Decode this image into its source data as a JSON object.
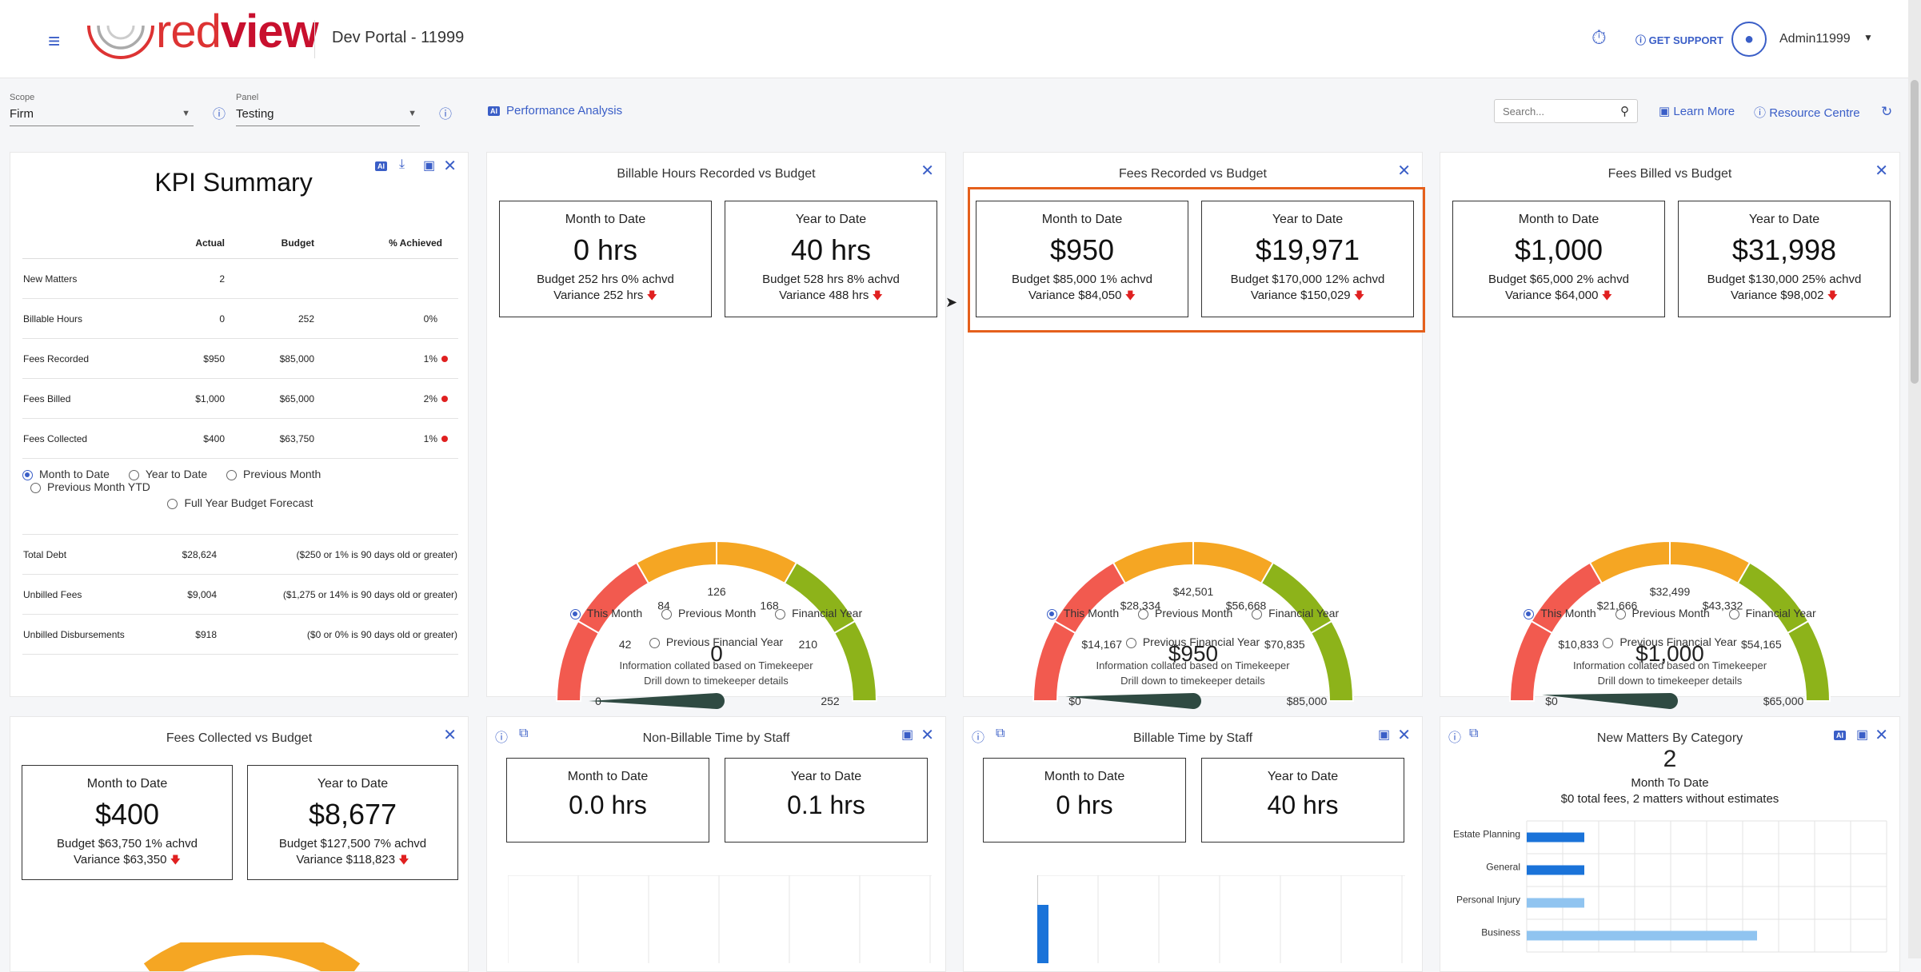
{
  "header": {
    "brand_a": "red",
    "brand_b": "view",
    "portal_title": "Dev Portal - 11999",
    "support_label": "GET SUPPORT",
    "user": "Admin11999"
  },
  "filters": {
    "scope_label": "Scope",
    "scope_value": "Firm",
    "panel_label": "Panel",
    "panel_value": "Testing",
    "perf_link": "Performance Analysis",
    "ai_badge": "AI",
    "search_placeholder": "Search...",
    "learn_more": "Learn More",
    "resource_centre": "Resource Centre"
  },
  "kpi": {
    "title": "KPI Summary",
    "ai_badge": "AI",
    "cols": [
      "Actual",
      "Budget",
      "% Achieved"
    ],
    "rows": [
      {
        "label": "New Matters",
        "actual": "2",
        "budget": "",
        "pct": ""
      },
      {
        "label": "Billable Hours",
        "actual": "0",
        "budget": "252",
        "pct": "0%"
      },
      {
        "label": "Fees Recorded",
        "actual": "$950",
        "budget": "$85,000",
        "pct": "1%"
      },
      {
        "label": "Fees Billed",
        "actual": "$1,000",
        "budget": "$65,000",
        "pct": "2%"
      },
      {
        "label": "Fees Collected",
        "actual": "$400",
        "budget": "$63,750",
        "pct": "1%"
      }
    ],
    "radios": [
      "Month to Date",
      "Year to Date",
      "Previous Month",
      "Previous Month YTD",
      "Full Year Budget Forecast"
    ],
    "debts": [
      {
        "label": "Total Debt",
        "value": "$28,624",
        "note": "($250 or 1% is 90 days old or greater)"
      },
      {
        "label": "Unbilled Fees",
        "value": "$9,004",
        "note": "($1,275 or 14% is 90 days old or greater)"
      },
      {
        "label": "Unbilled Disbursements",
        "value": "$918",
        "note": "($0 or 0% is 90 days old or greater)"
      }
    ]
  },
  "common": {
    "mtd": "Month to Date",
    "ytd": "Year to Date",
    "radios": [
      "This Month",
      "Previous Month",
      "Financial Year"
    ],
    "radio4": "Previous Financial Year",
    "note1": "Information collated based on Timekeeper",
    "note2": "Drill down to timekeeper details"
  },
  "billable": {
    "title": "Billable Hours Recorded vs Budget",
    "mtd_value": "0 hrs",
    "mtd_budget": "Budget 252 hrs 0% achvd",
    "mtd_variance": "Variance 252 hrs",
    "ytd_value": "40 hrs",
    "ytd_budget": "Budget 528 hrs 8% achvd",
    "ytd_variance": "Variance 488 hrs",
    "gauge": {
      "center": "0",
      "ticks": [
        "0",
        "42",
        "84",
        "126",
        "168",
        "210",
        "252"
      ],
      "value": 0,
      "max": 252
    }
  },
  "recorded": {
    "title": "Fees Recorded vs Budget",
    "mtd_value": "$950",
    "mtd_budget": "Budget $85,000 1% achvd",
    "mtd_variance": "Variance $84,050",
    "ytd_value": "$19,971",
    "ytd_budget": "Budget $170,000 12% achvd",
    "ytd_variance": "Variance $150,029",
    "gauge": {
      "center": "$950",
      "ticks": [
        "$0",
        "$14,167",
        "$28,334",
        "$42,501",
        "$56,668",
        "$70,835",
        "$85,000"
      ],
      "value": 950,
      "max": 85000
    }
  },
  "billed": {
    "title": "Fees Billed vs Budget",
    "mtd_value": "$1,000",
    "mtd_budget": "Budget $65,000 2% achvd",
    "mtd_variance": "Variance $64,000",
    "ytd_value": "$31,998",
    "ytd_budget": "Budget $130,000 25% achvd",
    "ytd_variance": "Variance $98,002",
    "gauge": {
      "center": "$1,000",
      "ticks": [
        "$0",
        "$10,833",
        "$21,666",
        "$32,499",
        "$43,332",
        "$54,165",
        "$65,000"
      ],
      "value": 1000,
      "max": 65000
    }
  },
  "collected": {
    "title": "Fees Collected vs Budget",
    "mtd_value": "$400",
    "mtd_budget": "Budget $63,750 1% achvd",
    "mtd_variance": "Variance $63,350",
    "ytd_value": "$8,677",
    "ytd_budget": "Budget $127,500 7% achvd",
    "ytd_variance": "Variance $118,823"
  },
  "nonbillable": {
    "title": "Non-Billable Time by Staff",
    "mtd_value": "0.0 hrs",
    "ytd_value": "0.1 hrs"
  },
  "billtime": {
    "title": "Billable Time by Staff",
    "mtd_value": "0 hrs",
    "ytd_value": "40 hrs"
  },
  "newmatters": {
    "title": "New Matters By Category",
    "ai_badge": "AI",
    "count": "2",
    "subtitle": "Month To Date",
    "summary": "$0 total fees, 2 matters without estimates"
  },
  "chart_data": [
    {
      "type": "bar",
      "orientation": "horizontal",
      "categories": [
        "Estate Planning",
        "General",
        "Personal Injury",
        "Business"
      ],
      "series": [
        {
          "values": [
            1,
            1,
            0,
            0
          ]
        },
        {
          "values": [
            0,
            0,
            1,
            4
          ]
        }
      ],
      "colors": [
        "#1a73d9",
        "#90c4f0"
      ],
      "grid": true,
      "xlim": [
        0,
        5
      ]
    }
  ]
}
